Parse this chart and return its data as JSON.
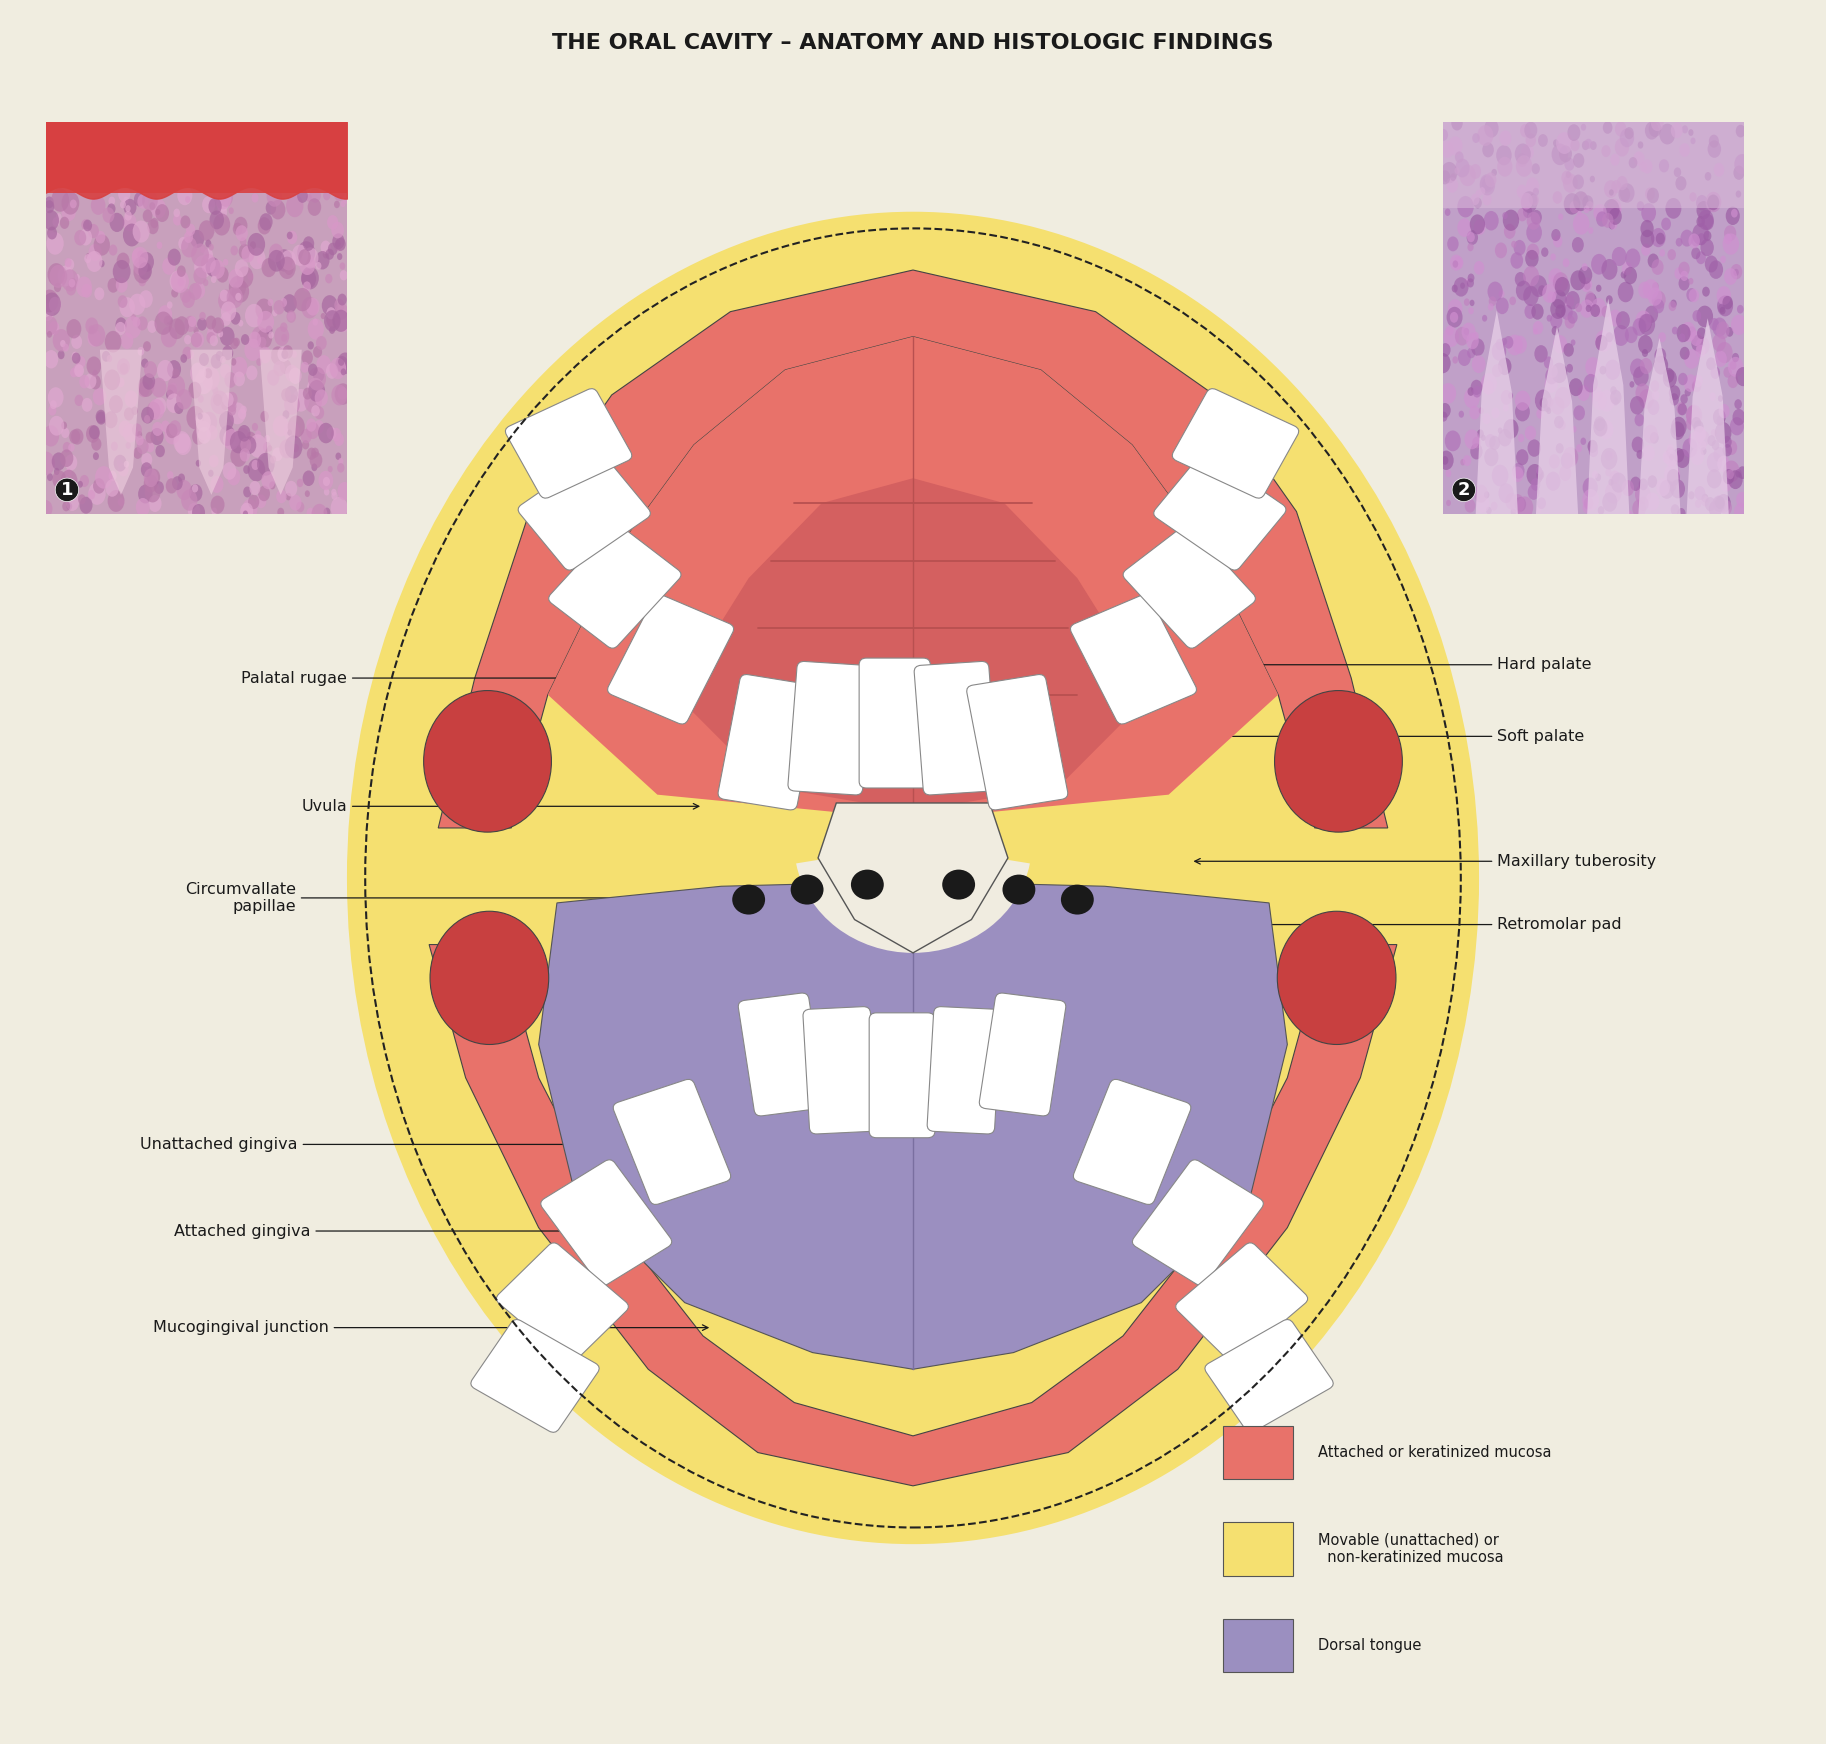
{
  "title": "THE ORAL CAVITY – ANATOMY AND HISTOLOGIC FINDINGS",
  "title_fontsize": 16,
  "header_color": "#8fad8a",
  "bg_color": "#f0ede0",
  "fig_width": 18.26,
  "fig_height": 17.44,
  "image1_border_color": "#e8726a",
  "image2_border_color": "#e8c84a",
  "legend_items": [
    {
      "color": "#e8726a",
      "text": "Attached or keratinized mucosa"
    },
    {
      "color": "#f5e070",
      "text": "Movable (unattached) or\n  non-keratinized mucosa"
    },
    {
      "color": "#9b8fc0",
      "text": "Dorsal tongue"
    }
  ]
}
